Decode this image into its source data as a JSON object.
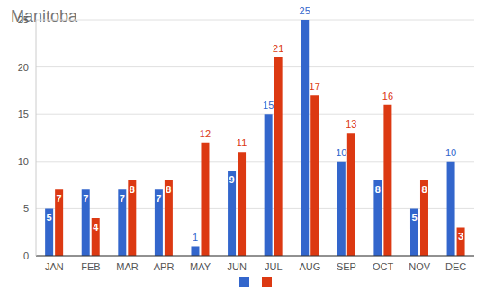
{
  "chart_data": {
    "type": "bar",
    "title": "Manitoba",
    "categories": [
      "JAN",
      "FEB",
      "MAR",
      "APR",
      "MAY",
      "JUN",
      "JUL",
      "AUG",
      "SEP",
      "OCT",
      "NOV",
      "DEC"
    ],
    "series": [
      {
        "color": "#3366cc",
        "values": [
          5,
          7,
          7,
          7,
          1,
          9,
          15,
          25,
          10,
          8,
          5,
          10
        ]
      },
      {
        "color": "#dc3912",
        "values": [
          7,
          4,
          8,
          8,
          12,
          11,
          21,
          17,
          13,
          16,
          8,
          3
        ]
      }
    ],
    "ylim": [
      0,
      25
    ],
    "yticks": [
      0,
      5,
      10,
      15,
      20,
      25
    ],
    "grid": true,
    "data_labels": true
  }
}
